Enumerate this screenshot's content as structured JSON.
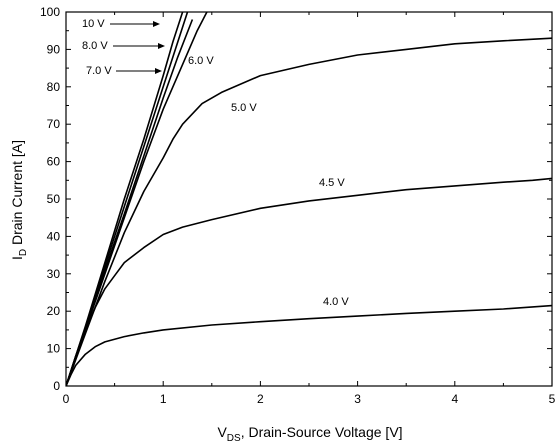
{
  "chart_data": {
    "type": "line",
    "xlabel": {
      "main": "V",
      "sub": "DS",
      "rest": ", Drain-Source Voltage [V]"
    },
    "ylabel": {
      "main": "I",
      "sub": "D",
      "rest": " Drain Current [A]"
    },
    "xlim": [
      0,
      5
    ],
    "ylim": [
      0,
      100
    ],
    "xticks": [
      "0",
      "1",
      "2",
      "3",
      "4",
      "5"
    ],
    "yticks": [
      "0",
      "10",
      "20",
      "30",
      "40",
      "50",
      "60",
      "70",
      "80",
      "90",
      "100"
    ],
    "grid": false,
    "series": [
      {
        "name": "10 V",
        "x": [
          0,
          0.2,
          0.4,
          0.6,
          0.8,
          1.0,
          1.1,
          1.2
        ],
        "y": [
          0,
          16,
          33,
          50,
          66,
          83,
          92,
          100
        ]
      },
      {
        "name": "8.0 V",
        "x": [
          0,
          0.2,
          0.4,
          0.6,
          0.8,
          1.0,
          1.15,
          1.25
        ],
        "y": [
          0,
          15.7,
          32,
          48,
          64,
          80,
          92,
          100
        ]
      },
      {
        "name": "7.0 V",
        "x": [
          0,
          0.2,
          0.4,
          0.6,
          0.8,
          1.0,
          1.15,
          1.3
        ],
        "y": [
          0,
          15.3,
          31,
          46,
          61.5,
          77,
          88,
          98
        ]
      },
      {
        "name": "6.0 V",
        "x": [
          0,
          0.2,
          0.4,
          0.6,
          0.8,
          1.0,
          1.2,
          1.35,
          1.45
        ],
        "y": [
          0,
          15,
          30,
          45,
          60,
          74,
          86,
          95,
          100
        ]
      },
      {
        "name": "5.0 V",
        "x": [
          0,
          0.2,
          0.4,
          0.6,
          0.8,
          1.0,
          1.1,
          1.2,
          1.4,
          1.6,
          2.0,
          2.5,
          3.0,
          3.5,
          4.0,
          4.5,
          5.0
        ],
        "y": [
          0,
          14,
          28,
          41,
          52,
          61,
          66,
          70,
          75.5,
          78.5,
          83,
          86,
          88.5,
          90,
          91.5,
          92.3,
          93
        ]
      },
      {
        "name": "4.5 V",
        "x": [
          0,
          0.1,
          0.2,
          0.3,
          0.4,
          0.5,
          0.6,
          0.8,
          1.0,
          1.2,
          1.5,
          2.0,
          2.5,
          3.0,
          3.5,
          4.0,
          4.5,
          4.8,
          5.0
        ],
        "y": [
          0,
          8,
          15,
          21,
          26,
          29.5,
          33,
          37,
          40.5,
          42.5,
          44.5,
          47.5,
          49.5,
          51,
          52.5,
          53.5,
          54.5,
          55,
          55.5
        ]
      },
      {
        "name": "4.0 V",
        "x": [
          0,
          0.05,
          0.1,
          0.2,
          0.3,
          0.4,
          0.6,
          0.8,
          1.0,
          1.5,
          2.0,
          2.5,
          3.0,
          3.5,
          4.0,
          4.5,
          5.0
        ],
        "y": [
          0,
          3,
          5.5,
          8.5,
          10.5,
          11.8,
          13.2,
          14.2,
          15,
          16.3,
          17.2,
          18,
          18.7,
          19.4,
          20,
          20.6,
          21.5
        ]
      }
    ]
  }
}
